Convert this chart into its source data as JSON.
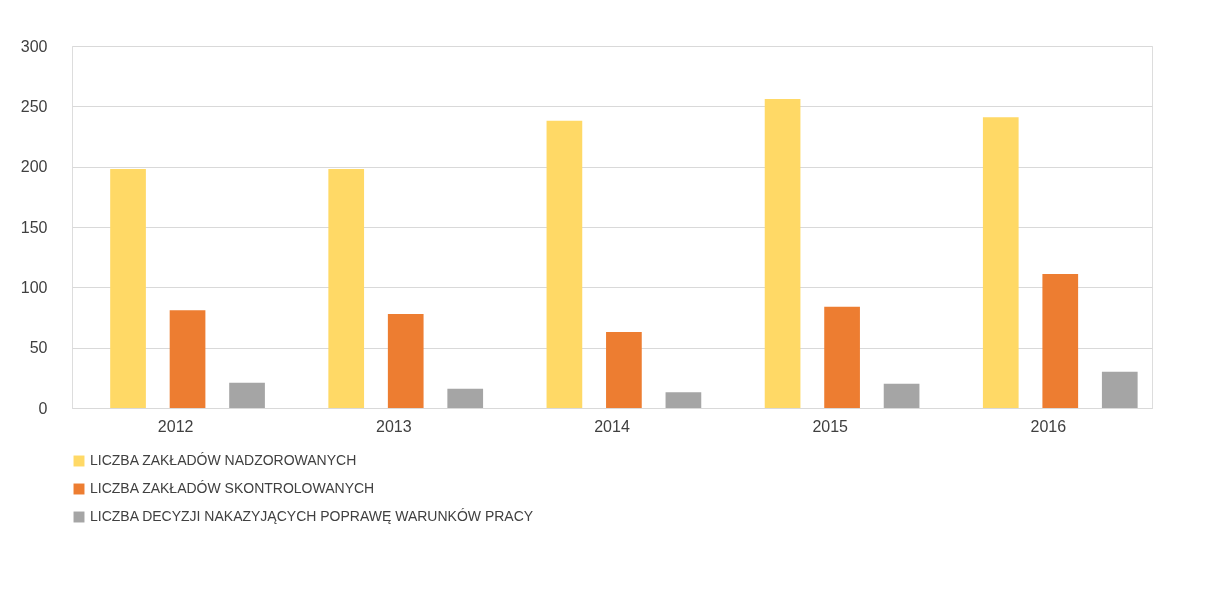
{
  "chart_data": {
    "type": "bar",
    "categories": [
      "2012",
      "2013",
      "2014",
      "2015",
      "2016"
    ],
    "series": [
      {
        "name": "LICZBA ZAKŁADÓW NADZOROWANYCH",
        "color": "#ffd966",
        "values": [
          198,
          198,
          238,
          256,
          241
        ]
      },
      {
        "name": "LICZBA ZAKŁADÓW SKONTROLOWANYCH",
        "color": "#ed7d31",
        "values": [
          81,
          78,
          63,
          84,
          111
        ]
      },
      {
        "name": "LICZBA DECYZJI NAKAZYJĄCYCH POPRAWĘ WARUNKÓW PRACY",
        "color": "#a5a5a5",
        "values": [
          21,
          16,
          13,
          20,
          30
        ]
      }
    ],
    "ylim": [
      0,
      300
    ],
    "yticks": [
      0,
      50,
      100,
      150,
      200,
      250,
      300
    ],
    "grid": "y",
    "legend": "bottom"
  }
}
